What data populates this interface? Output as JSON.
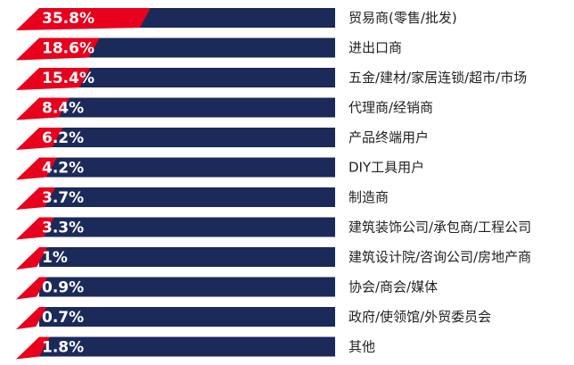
{
  "chart_data": {
    "type": "bar",
    "orientation": "horizontal",
    "stacked_style": "share-of-total",
    "xlim": [
      0,
      100
    ],
    "value_unit": "%",
    "categories": [
      "贸易商(零售/批发)",
      "进出口商",
      "五金/建材/家居连锁/超市/市场",
      "代理商/经销商",
      "产品终端用户",
      "DIY工具用户",
      "制造商",
      "建筑装饰公司/承包商/工程公司",
      "建筑设计院/咨询公司/房地产商",
      "协会/商会/媒体",
      "政府/使领馆/外贸委员会",
      "其他"
    ],
    "values": [
      35.8,
      18.6,
      15.4,
      8.4,
      6.2,
      4.2,
      3.7,
      3.3,
      1,
      0.9,
      0.7,
      1.8
    ],
    "value_labels": [
      "35.8%",
      "18.6%",
      "15.4%",
      "8.4%",
      "6.2%",
      "4.2%",
      "3.7%",
      "3.3%",
      "1%",
      "0.9%",
      "0.7%",
      "1.8%"
    ],
    "colors": {
      "value": "#e8001c",
      "remainder": "#1c2a5a"
    },
    "title": "",
    "xlabel": "",
    "ylabel": "",
    "legend": "none",
    "grid": false
  }
}
